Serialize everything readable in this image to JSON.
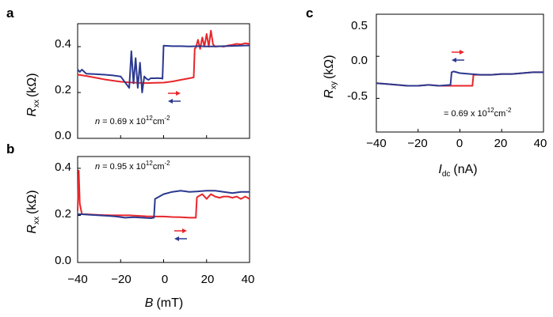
{
  "chart_data": [
    {
      "panel_label": "a",
      "type": "line",
      "ylabel": "R",
      "ylabel_sub": "xx",
      "ylabel_unit": "(kΩ)",
      "xlim": [
        -40,
        40
      ],
      "ylim": [
        0,
        0.5
      ],
      "yticks": [
        "0.0",
        "0.2",
        "0.4"
      ],
      "ytick_values": [
        0,
        0.2,
        0.4
      ],
      "xtick_values": [
        -40,
        -20,
        0,
        20,
        40
      ],
      "annotation": {
        "prefix": "n",
        "text": " = 0.69 x 10",
        "exp1": "12",
        "mid": "cm",
        "exp2": "-2"
      },
      "series": [
        {
          "color": "#e8262b",
          "direction": "forward",
          "x": [
            -40,
            -36,
            -32,
            -28,
            -24,
            -20,
            -16,
            -12,
            -8,
            -4,
            0,
            4,
            8,
            12,
            14,
            14.5,
            15,
            16,
            17,
            18,
            19,
            20,
            21,
            22,
            23,
            24,
            26,
            28,
            30,
            32,
            34,
            36,
            38,
            40
          ],
          "y": [
            0.278,
            0.272,
            0.265,
            0.258,
            0.252,
            0.247,
            0.244,
            0.242,
            0.241,
            0.242,
            0.243,
            0.248,
            0.255,
            0.262,
            0.266,
            0.392,
            0.395,
            0.43,
            0.39,
            0.44,
            0.4,
            0.455,
            0.4,
            0.47,
            0.41,
            0.4,
            0.402,
            0.4,
            0.405,
            0.408,
            0.412,
            0.41,
            0.415,
            0.412
          ]
        },
        {
          "color": "#2b3990",
          "direction": "backward",
          "x": [
            40,
            36,
            32,
            28,
            24,
            20,
            16,
            12,
            8,
            4,
            0,
            -0.5,
            -1,
            -2,
            -3,
            -4,
            -5,
            -6,
            -7,
            -8,
            -9,
            -10,
            -11,
            -12,
            -13,
            -14,
            -15,
            -16,
            -20,
            -24,
            -28,
            -32,
            -36,
            -38,
            -39,
            -40
          ],
          "y": [
            0.405,
            0.404,
            0.403,
            0.402,
            0.401,
            0.401,
            0.402,
            0.401,
            0.402,
            0.402,
            0.404,
            0.26,
            0.262,
            0.262,
            0.263,
            0.262,
            0.262,
            0.262,
            0.255,
            0.26,
            0.27,
            0.2,
            0.33,
            0.22,
            0.35,
            0.24,
            0.38,
            0.22,
            0.27,
            0.275,
            0.278,
            0.28,
            0.282,
            0.3,
            0.29,
            0.3
          ]
        }
      ]
    },
    {
      "panel_label": "b",
      "type": "line",
      "ylabel": "R",
      "ylabel_sub": "xx",
      "ylabel_unit": "(kΩ)",
      "xlabel": "B",
      "xlabel_unit": "(mT)",
      "xlim": [
        -40,
        40
      ],
      "ylim": [
        0,
        0.45
      ],
      "yticks": [
        "0.0",
        "0.2",
        "0.4"
      ],
      "ytick_values": [
        0,
        0.2,
        0.4
      ],
      "xticks": [
        "−40",
        "−20",
        "0",
        "20",
        "40"
      ],
      "xtick_values": [
        -40,
        -20,
        0,
        20,
        40
      ],
      "annotation": {
        "prefix": "n",
        "text": " = 0.95 x 10",
        "exp1": "12",
        "mid": "cm",
        "exp2": "-2"
      },
      "series": [
        {
          "color": "#e8262b",
          "direction": "forward",
          "x": [
            -40,
            -39.5,
            -39,
            -38,
            -36,
            -32,
            -28,
            -24,
            -20,
            -16,
            -12,
            -8,
            -4,
            0,
            4,
            8,
            12,
            15,
            15.5,
            16,
            18,
            20,
            22,
            24,
            26,
            28,
            30,
            32,
            34,
            36,
            38,
            40
          ],
          "y": [
            0.22,
            0.39,
            0.25,
            0.205,
            0.205,
            0.203,
            0.201,
            0.2,
            0.2,
            0.2,
            0.198,
            0.196,
            0.195,
            0.195,
            0.193,
            0.192,
            0.19,
            0.19,
            0.275,
            0.28,
            0.29,
            0.27,
            0.29,
            0.28,
            0.275,
            0.28,
            0.28,
            0.275,
            0.28,
            0.27,
            0.28,
            0.27
          ]
        },
        {
          "color": "#2b3990",
          "direction": "backward",
          "x": [
            40,
            36,
            32,
            28,
            24,
            20,
            16,
            12,
            8,
            4,
            0,
            -3,
            -4,
            -4.5,
            -6,
            -10,
            -14,
            -18,
            -22,
            -26,
            -30,
            -34,
            -38,
            -40
          ],
          "y": [
            0.3,
            0.3,
            0.295,
            0.3,
            0.305,
            0.305,
            0.302,
            0.3,
            0.305,
            0.3,
            0.29,
            0.275,
            0.27,
            0.19,
            0.188,
            0.19,
            0.192,
            0.19,
            0.195,
            0.198,
            0.2,
            0.202,
            0.205,
            0.205
          ]
        }
      ]
    },
    {
      "panel_label": "c",
      "type": "line",
      "ylabel": "R",
      "ylabel_sub": "xy",
      "ylabel_unit": "(kΩ)",
      "xlabel": "I",
      "xlabel_sub": "dc",
      "xlabel_unit": "(nA)",
      "xlim": [
        -40,
        40
      ],
      "ylim": [
        -0.9,
        0.5
      ],
      "yticks": [
        "0.5",
        "0.0",
        "-0.5"
      ],
      "ytick_values": [
        0.5,
        0,
        -0.5
      ],
      "xticks": [
        "−40",
        "−20",
        "0",
        "20",
        "40"
      ],
      "xtick_values": [
        -40,
        -20,
        0,
        20,
        40
      ],
      "annotation": {
        "prefix": "",
        "text": "= 0.69 x 10",
        "exp1": "12",
        "mid": "cm",
        "exp2": "-2"
      },
      "series": [
        {
          "color": "#e8262b",
          "direction": "forward",
          "x": [
            -40,
            -35,
            -30,
            -25,
            -20,
            -15,
            -10,
            -5,
            0,
            3,
            6,
            6.5,
            10,
            15,
            20,
            25,
            30,
            35,
            40
          ],
          "y": [
            -0.32,
            -0.33,
            -0.34,
            -0.35,
            -0.35,
            -0.34,
            -0.35,
            -0.35,
            -0.35,
            -0.35,
            -0.35,
            -0.22,
            -0.22,
            -0.22,
            -0.21,
            -0.21,
            -0.2,
            -0.19,
            -0.19
          ]
        },
        {
          "color": "#2b3990",
          "direction": "backward",
          "x": [
            40,
            35,
            30,
            25,
            20,
            15,
            10,
            5,
            0,
            -3,
            -4,
            -4.5,
            -10,
            -15,
            -20,
            -25,
            -30,
            -35,
            -40
          ],
          "y": [
            -0.19,
            -0.19,
            -0.2,
            -0.21,
            -0.21,
            -0.22,
            -0.22,
            -0.21,
            -0.2,
            -0.18,
            -0.19,
            -0.34,
            -0.35,
            -0.34,
            -0.35,
            -0.35,
            -0.34,
            -0.33,
            -0.32
          ]
        }
      ]
    }
  ]
}
